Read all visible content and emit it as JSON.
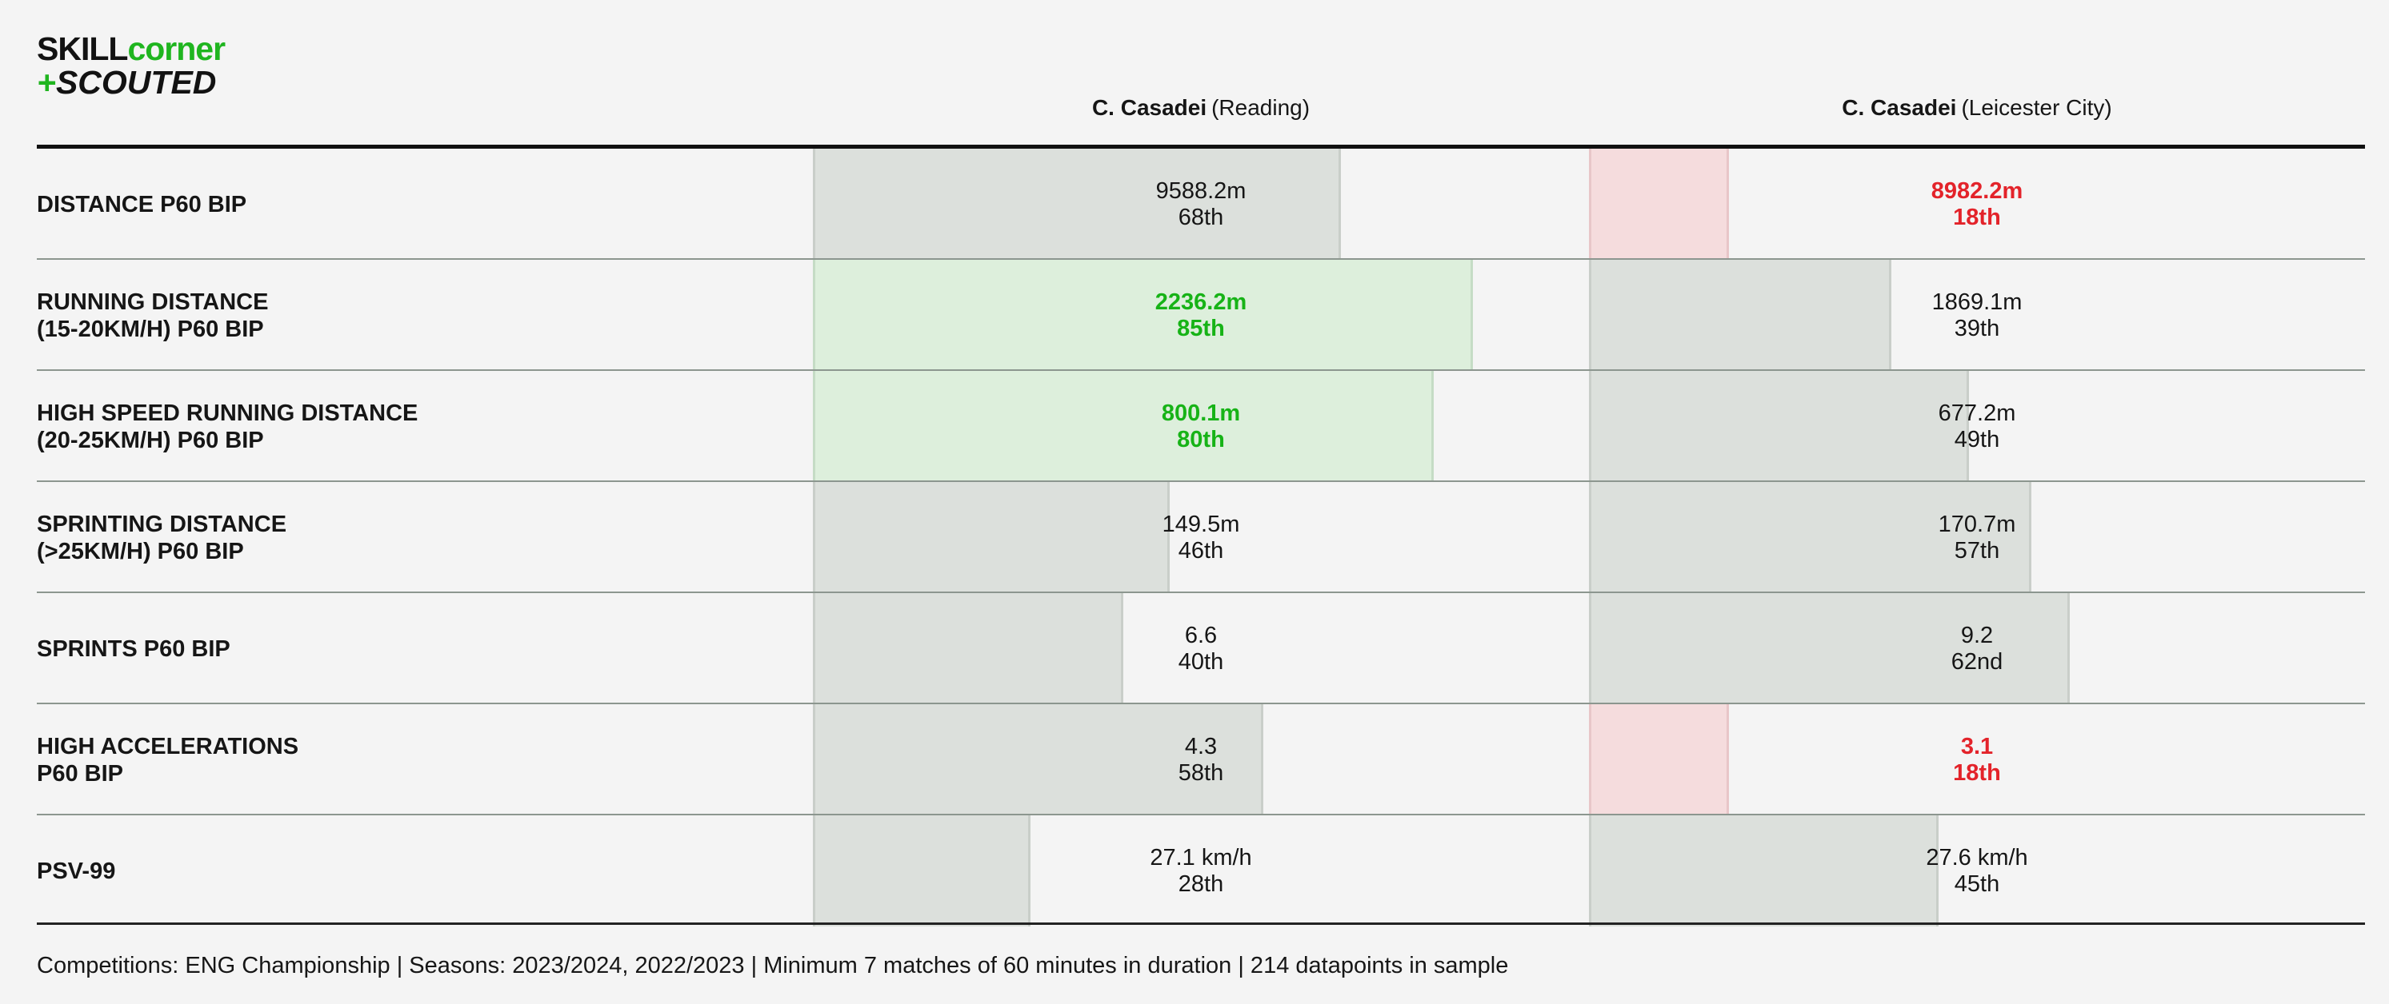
{
  "logo": {
    "skill": "SKILL",
    "corner": "corner",
    "plus": "+",
    "scouted": "SCOUTED"
  },
  "players": [
    {
      "name": "C. Casadei",
      "team": "(Reading)"
    },
    {
      "name": "C. Casadei",
      "team": "(Leicester City)"
    }
  ],
  "colors": {
    "good": "#1fb51f",
    "bad": "#e3232a",
    "neutral_bar": "#dce0dc",
    "good_bar": "#ddefdc",
    "bad_bar": "#f5dcdd"
  },
  "chart_data": {
    "type": "table",
    "title": "",
    "columns": [
      "C. Casadei (Reading)",
      "C. Casadei (Leicester City)"
    ],
    "rows": [
      {
        "metric": "DISTANCE P60 BIP",
        "values": [
          {
            "value": "9588.2m",
            "rank": "68th",
            "percentile": 68,
            "status": "neutral"
          },
          {
            "value": "8982.2m",
            "rank": "18th",
            "percentile": 18,
            "status": "bad"
          }
        ]
      },
      {
        "metric": "RUNNING DISTANCE\n(15-20KM/H) P60 BIP",
        "values": [
          {
            "value": "2236.2m",
            "rank": "85th",
            "percentile": 85,
            "status": "good"
          },
          {
            "value": "1869.1m",
            "rank": "39th",
            "percentile": 39,
            "status": "neutral"
          }
        ]
      },
      {
        "metric": "HIGH SPEED RUNNING DISTANCE\n(20-25KM/H) P60 BIP",
        "values": [
          {
            "value": "800.1m",
            "rank": "80th",
            "percentile": 80,
            "status": "good"
          },
          {
            "value": "677.2m",
            "rank": "49th",
            "percentile": 49,
            "status": "neutral"
          }
        ]
      },
      {
        "metric": "SPRINTING DISTANCE\n(>25KM/H) P60 BIP",
        "values": [
          {
            "value": "149.5m",
            "rank": "46th",
            "percentile": 46,
            "status": "neutral"
          },
          {
            "value": "170.7m",
            "rank": "57th",
            "percentile": 57,
            "status": "neutral"
          }
        ]
      },
      {
        "metric": "SPRINTS P60 BIP",
        "values": [
          {
            "value": "6.6",
            "rank": "40th",
            "percentile": 40,
            "status": "neutral"
          },
          {
            "value": "9.2",
            "rank": "62nd",
            "percentile": 62,
            "status": "neutral"
          }
        ]
      },
      {
        "metric": "HIGH ACCELERATIONS\nP60 BIP",
        "values": [
          {
            "value": "4.3",
            "rank": "58th",
            "percentile": 58,
            "status": "neutral"
          },
          {
            "value": "3.1",
            "rank": "18th",
            "percentile": 18,
            "status": "bad"
          }
        ]
      },
      {
        "metric": "PSV-99",
        "values": [
          {
            "value": "27.1 km/h",
            "rank": "28th",
            "percentile": 28,
            "status": "neutral"
          },
          {
            "value": "27.6 km/h",
            "rank": "45th",
            "percentile": 45,
            "status": "neutral"
          }
        ]
      }
    ]
  },
  "footer": "Competitions: ENG Championship | Seasons: 2023/2024, 2022/2023 | Minimum 7 matches of 60 minutes in duration | 214 datapoints in sample"
}
